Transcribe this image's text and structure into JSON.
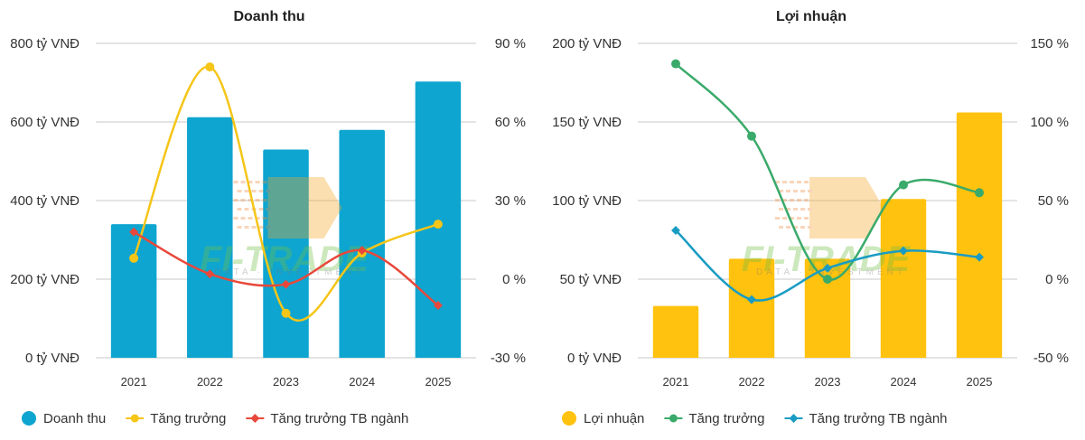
{
  "chart_data": [
    {
      "type": "bar",
      "title": "Doanh thu",
      "categories": [
        "2021",
        "2022",
        "2023",
        "2024",
        "2025"
      ],
      "y_left_ticks": [
        "800 tỷ VNĐ",
        "600 tỷ VNĐ",
        "400 tỷ VNĐ",
        "200 tỷ VNĐ",
        "0 tỷ VNĐ"
      ],
      "y_right_ticks": [
        "90 %",
        "60 %",
        "30 %",
        "0 %",
        "-30 %"
      ],
      "ylim_left": [
        0,
        800
      ],
      "ylim_right": [
        -30,
        90
      ],
      "grid": true,
      "legend_position": "bottom-left",
      "series": [
        {
          "name": "Doanh thu",
          "kind": "bar",
          "axis": "left",
          "color": "#0ea5d0",
          "values": [
            340,
            612,
            530,
            580,
            703
          ]
        },
        {
          "name": "Tăng trưởng",
          "kind": "line",
          "axis": "right",
          "color": "#f5c518",
          "values": [
            8,
            81,
            -13,
            10,
            21
          ]
        },
        {
          "name": "Tăng trưởng TB ngành",
          "kind": "line",
          "axis": "right",
          "color": "#e8483b",
          "values": [
            18,
            2,
            -2,
            11,
            -10
          ]
        }
      ]
    },
    {
      "type": "bar",
      "title": "Lợi nhuận",
      "categories": [
        "2021",
        "2022",
        "2023",
        "2024",
        "2025"
      ],
      "y_left_ticks": [
        "200 tỷ VNĐ",
        "150 tỷ VNĐ",
        "100 tỷ VNĐ",
        "50 tỷ VNĐ",
        "0 tỷ VNĐ"
      ],
      "y_right_ticks": [
        "150 %",
        "100 %",
        "50 %",
        "0 %",
        "-50 %"
      ],
      "ylim_left": [
        0,
        200
      ],
      "ylim_right": [
        -50,
        150
      ],
      "grid": true,
      "legend_position": "bottom-left",
      "series": [
        {
          "name": "Lợi nhuận",
          "kind": "bar",
          "axis": "left",
          "color": "#ffc20e",
          "values": [
            33,
            63,
            63,
            101,
            156
          ]
        },
        {
          "name": "Tăng trưởng",
          "kind": "line",
          "axis": "right",
          "color": "#3aaa6a",
          "values": [
            137,
            91,
            0,
            60,
            55
          ]
        },
        {
          "name": "Tăng trưởng TB ngành",
          "kind": "line",
          "axis": "right",
          "color": "#1a9cc2",
          "values": [
            31,
            -13,
            7,
            18,
            14
          ]
        }
      ]
    }
  ],
  "watermark": {
    "brand": "FI-TRADE",
    "tagline": "DATA · INVESTMENT",
    "arrow_color": "#f5a623",
    "text_color": "#6fbf44"
  }
}
